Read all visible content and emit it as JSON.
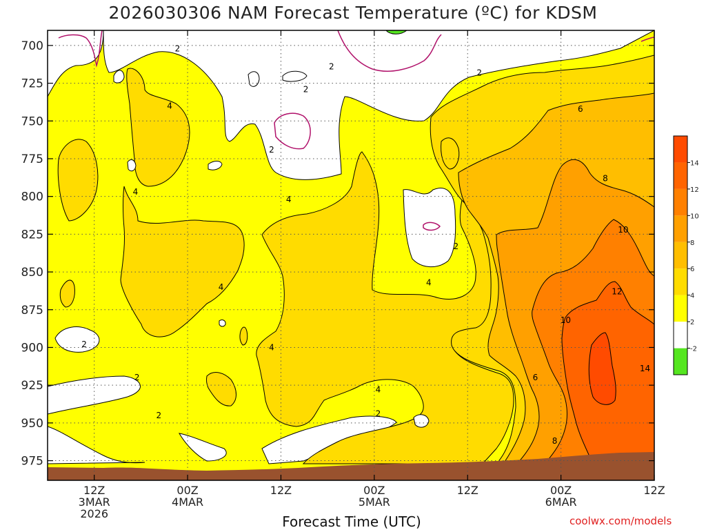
{
  "title": "2026030306 NAM Forecast Temperature (ºC) for KDSM",
  "credit": "coolwx.com/models",
  "chart_data": {
    "type": "heatmap",
    "title": "2026030306 NAM Forecast Temperature (ºC) for KDSM",
    "xlabel": "Forecast Time (UTC)",
    "ylabel": "",
    "y_unit": "hPa",
    "ylim": [
      988,
      690
    ],
    "xlim_hours_from_init": [
      0,
      78
    ],
    "y_ticks": [
      "700",
      "725",
      "750",
      "775",
      "800",
      "825",
      "850",
      "875",
      "900",
      "925",
      "950",
      "975"
    ],
    "x_ticks": [
      {
        "hour": 6,
        "lines": [
          "12Z",
          "3MAR",
          "2026"
        ]
      },
      {
        "hour": 18,
        "lines": [
          "00Z",
          "4MAR"
        ]
      },
      {
        "hour": 30,
        "lines": [
          "12Z"
        ]
      },
      {
        "hour": 42,
        "lines": [
          "00Z",
          "5MAR"
        ]
      },
      {
        "hour": 54,
        "lines": [
          "12Z"
        ]
      },
      {
        "hour": 66,
        "lines": [
          "00Z",
          "6MAR"
        ]
      },
      {
        "hour": 78,
        "lines": [
          "12Z"
        ]
      }
    ],
    "grid": true,
    "ground_color": "#99522e",
    "colorbar": {
      "ticks": [
        "14",
        "12",
        "10",
        "8",
        "6",
        "4",
        "2",
        "-2"
      ],
      "bins": [
        {
          "range": "< -2",
          "color": "#55e620"
        },
        {
          "range": "-2 to 2",
          "color": "#ffffff"
        },
        {
          "range": "2 to 4",
          "color": "#ffff00"
        },
        {
          "range": "4 to 6",
          "color": "#ffdc00"
        },
        {
          "range": "6 to 8",
          "color": "#ffbe00"
        },
        {
          "range": "8 to 10",
          "color": "#ffa000"
        },
        {
          "range": "10 to 12",
          "color": "#ff8000"
        },
        {
          "range": "12 to 14",
          "color": "#ff6400"
        },
        {
          "range": "> 14",
          "color": "#ff4b00"
        }
      ]
    },
    "contour_labels": [
      {
        "text": "2",
        "hour": 16.7,
        "p": 702
      },
      {
        "text": "4",
        "hour": 15.7,
        "p": 740
      },
      {
        "text": "2",
        "hour": 36.5,
        "p": 714
      },
      {
        "text": "2",
        "hour": 33.2,
        "p": 729
      },
      {
        "text": "2",
        "hour": 55.5,
        "p": 718
      },
      {
        "text": "6",
        "hour": 68.5,
        "p": 742
      },
      {
        "text": "2",
        "hour": 28.8,
        "p": 769
      },
      {
        "text": "4",
        "hour": 11.3,
        "p": 797
      },
      {
        "text": "4",
        "hour": 31.0,
        "p": 802
      },
      {
        "text": "8",
        "hour": 71.7,
        "p": 788
      },
      {
        "text": "10",
        "hour": 74.0,
        "p": 822
      },
      {
        "text": "2",
        "hour": 52.5,
        "p": 833
      },
      {
        "text": "4",
        "hour": 49.0,
        "p": 857
      },
      {
        "text": "4",
        "hour": 22.3,
        "p": 860
      },
      {
        "text": "12",
        "hour": 73.2,
        "p": 863
      },
      {
        "text": "10",
        "hour": 66.6,
        "p": 882
      },
      {
        "text": "2",
        "hour": 4.7,
        "p": 898
      },
      {
        "text": "4",
        "hour": 28.8,
        "p": 900
      },
      {
        "text": "14",
        "hour": 76.8,
        "p": 914
      },
      {
        "text": "6",
        "hour": 62.7,
        "p": 920
      },
      {
        "text": "2",
        "hour": 11.5,
        "p": 920
      },
      {
        "text": "4",
        "hour": 42.5,
        "p": 928
      },
      {
        "text": "2",
        "hour": 14.3,
        "p": 945
      },
      {
        "text": "2",
        "hour": 42.5,
        "p": 944
      },
      {
        "text": "8",
        "hour": 65.2,
        "p": 962
      }
    ]
  }
}
